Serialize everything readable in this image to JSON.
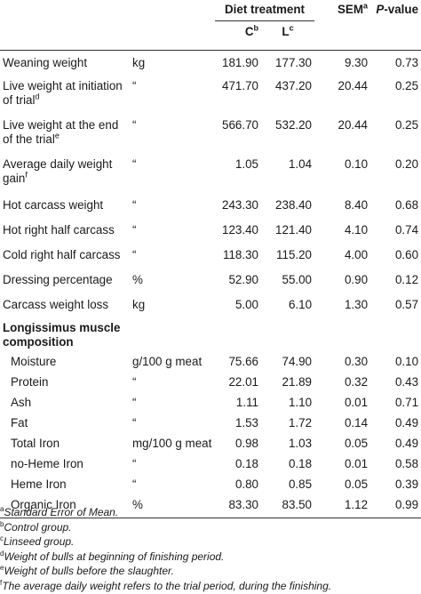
{
  "header": {
    "diet_treatment": "Diet treatment",
    "col_c": "C",
    "col_c_sup": "b",
    "col_l": "L",
    "col_l_sup": "c",
    "col_sem": "SEM",
    "col_sem_sup": "a",
    "col_p": "P",
    "col_p_suffix": "-value"
  },
  "rows": [
    {
      "label": "Weaning weight",
      "unit": "kg",
      "c": "181.90",
      "l": "177.30",
      "sem": "9.30",
      "p": "0.73"
    },
    {
      "label": "Live weight at initiation of trial",
      "sup": "d",
      "unit": "“",
      "c": "471.70",
      "l": "437.20",
      "sem": "20.44",
      "p": "0.25"
    },
    {
      "label": "Live weight at the end of the trial",
      "sup": "e",
      "unit": "“",
      "c": "566.70",
      "l": "532.20",
      "sem": "20.44",
      "p": "0.25"
    },
    {
      "label": "Average daily weight gain",
      "sup": "f",
      "unit": "“",
      "c": "1.05",
      "l": "1.04",
      "sem": "0.10",
      "p": "0.20"
    },
    {
      "label": "Hot carcass weight",
      "unit": "“",
      "c": "243.30",
      "l": "238.40",
      "sem": "8.40",
      "p": "0.68"
    },
    {
      "label": "Hot right half carcass",
      "unit": "“",
      "c": "123.40",
      "l": "121.40",
      "sem": "4.10",
      "p": "0.74"
    },
    {
      "label": "Cold right half carcass",
      "unit": "“",
      "c": "118.30",
      "l": "115.20",
      "sem": "4.00",
      "p": "0.60"
    },
    {
      "label": "Dressing percentage",
      "unit": "%",
      "c": "52.90",
      "l": "55.00",
      "sem": "0.90",
      "p": "0.12"
    },
    {
      "label": "Carcass weight loss",
      "unit": "kg",
      "c": "5.00",
      "l": "6.10",
      "sem": "1.30",
      "p": "0.57"
    }
  ],
  "section_title": "Longissimus muscle composition",
  "muscle_rows": [
    {
      "label": "Moisture",
      "unit": "g/100 g meat",
      "c": "75.66",
      "l": "74.90",
      "sem": "0.30",
      "p": "0.10"
    },
    {
      "label": "Protein",
      "unit": "“",
      "c": "22.01",
      "l": "21.89",
      "sem": "0.32",
      "p": "0.43"
    },
    {
      "label": "Ash",
      "unit": "“",
      "c": "1.11",
      "l": "1.10",
      "sem": "0.01",
      "p": "0.71"
    },
    {
      "label": "Fat",
      "unit": "“",
      "c": "1.53",
      "l": "1.72",
      "sem": "0.14",
      "p": "0.49"
    },
    {
      "label": "Total Iron",
      "unit": "mg/100 g meat",
      "c": "0.98",
      "l": "1.03",
      "sem": "0.05",
      "p": "0.49"
    },
    {
      "label": "no-Heme Iron",
      "unit": "“",
      "c": "0.18",
      "l": "0.18",
      "sem": "0.01",
      "p": "0.58"
    },
    {
      "label": "Heme Iron",
      "unit": "“",
      "c": "0.80",
      "l": "0.85",
      "sem": "0.05",
      "p": "0.39"
    },
    {
      "label": "Organic Iron",
      "unit": "%",
      "c": "83.30",
      "l": "83.50",
      "sem": "1.12",
      "p": "0.99"
    }
  ],
  "footnotes": [
    {
      "mark": "a",
      "text": "Standard Error of Mean."
    },
    {
      "mark": "b",
      "text": "Control group."
    },
    {
      "mark": "c",
      "text": "Linseed group."
    },
    {
      "mark": "d",
      "text": "Weight of bulls at beginning of finishing period."
    },
    {
      "mark": "e",
      "text": "Weight of bulls before the slaughter."
    },
    {
      "mark": "f",
      "text": "The average daily weight refers to the trial period, during the finishing."
    }
  ]
}
